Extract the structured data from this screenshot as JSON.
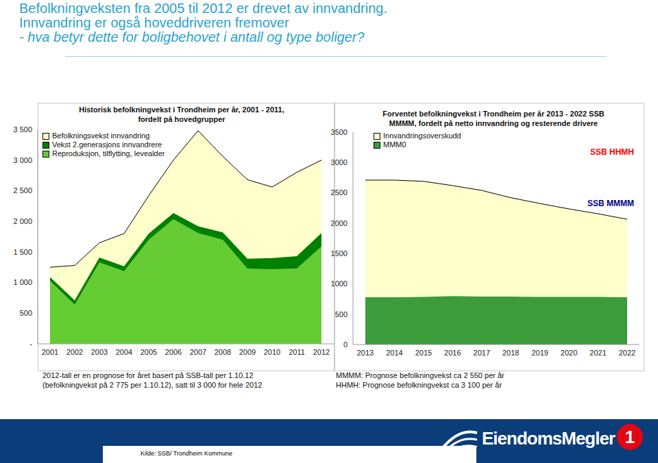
{
  "heading": [
    "Befolkningveksten fra 2005 til 2012 er drevet av innvandring.",
    "Innvandring er også hoveddriveren fremover",
    "- hva betyr dette for boligbehovet i antall og type boliger?"
  ],
  "chart_data": [
    {
      "type": "area",
      "stacked": true,
      "title": [
        "Historisk befolkningvekst i Trondheim per år, 2001 - 2011,",
        "fordelt på hovedgrupper"
      ],
      "categories": [
        "2001",
        "2002",
        "2003",
        "2004",
        "2005",
        "2006",
        "2007",
        "2008",
        "2009",
        "2010",
        "2011",
        "2012"
      ],
      "series": [
        {
          "name": "Befolkningsvekst innvandring",
          "color": "#ffffcc",
          "values": [
            160,
            570,
            240,
            535,
            620,
            865,
            1560,
            1240,
            1290,
            1160,
            1370,
            1190
          ]
        },
        {
          "name": "Vekst 2.generasjons innvandrere",
          "color": "#008000",
          "values": [
            60,
            70,
            80,
            80,
            100,
            100,
            110,
            120,
            160,
            180,
            200,
            220
          ]
        },
        {
          "name": "Reproduksjon, tilflytting, levealder",
          "color": "#66cc33",
          "values": [
            1030,
            640,
            1330,
            1185,
            1700,
            2035,
            1810,
            1700,
            1230,
            1220,
            1230,
            1590
          ]
        }
      ],
      "ylim": [
        0,
        3500
      ],
      "yticks": [
        {
          "value": 0,
          "label": "-"
        },
        500,
        {
          "value": 1000,
          "label": "1 000"
        },
        {
          "value": 1500,
          "label": "1 500"
        },
        {
          "value": 2000,
          "label": "2 000"
        },
        {
          "value": 2500,
          "label": "2 500"
        },
        {
          "value": 3000,
          "label": "3 000"
        },
        {
          "value": 3500,
          "label": "3 500"
        }
      ],
      "legend": "top-left",
      "grid": false,
      "notes": [
        "2012-tall er en prognose for året basert på SSB-tall per 1.10.12",
        "(befolkningvekst på 2 775 per 1.10.12), satt til 3 000 for hele 2012"
      ]
    },
    {
      "type": "area",
      "stacked": true,
      "title": [
        "Forventet befolkningvekst i Trondheim per år 2013 - 2022 SSB",
        "MMMM, fordelt på netto innvandring og resterende drivere"
      ],
      "categories": [
        "2013",
        "2014",
        "2015",
        "2016",
        "2017",
        "2018",
        "2019",
        "2020",
        "2021",
        "2022"
      ],
      "series": [
        {
          "name": "Innvandringsoverskudd",
          "color": "#ffffcc",
          "values": [
            1930,
            1930,
            1905,
            1820,
            1750,
            1630,
            1540,
            1450,
            1370,
            1285
          ]
        },
        {
          "name": "MMM0",
          "color": "#3c9c3c",
          "values": [
            780,
            780,
            785,
            800,
            790,
            790,
            785,
            785,
            785,
            780
          ]
        }
      ],
      "ylim": [
        0,
        3500
      ],
      "yticks": [
        0,
        500,
        1000,
        1500,
        2000,
        2500,
        3000,
        3500
      ],
      "legend": "top-left",
      "grid": false,
      "annotations": [
        {
          "text": "SSB HHMH",
          "color": "#ff0000"
        },
        {
          "text": "SSB MMMM",
          "color": "#000080"
        }
      ],
      "notes": [
        "MMMM: Prognose befolkningvekst ca 2 550 per år",
        "HHMH: Prognose befolkningvekst ca 3 100 per år"
      ]
    }
  ],
  "source": "Kilde: SSB/ Trondheim Kommune",
  "logo": [
    "EiendomsMegler",
    "1"
  ]
}
